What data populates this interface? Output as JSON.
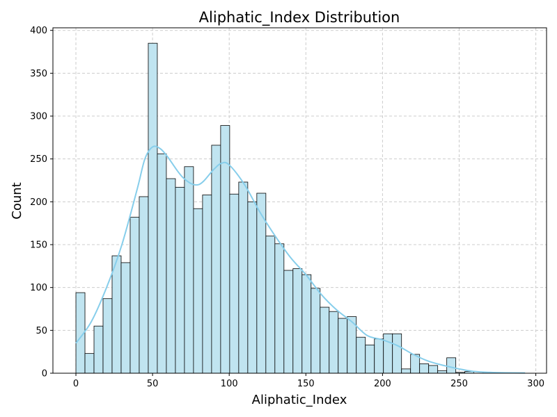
{
  "chart_data": {
    "type": "bar",
    "title": "Aliphatic_Index Distribution",
    "xlabel": "Aliphatic_Index",
    "ylabel": "Count",
    "xlim": [
      -15,
      307
    ],
    "ylim": [
      0,
      403
    ],
    "x_ticks": [
      0,
      50,
      100,
      150,
      200,
      250,
      300
    ],
    "y_ticks": [
      0,
      50,
      100,
      150,
      200,
      250,
      300,
      350,
      400
    ],
    "grid": true,
    "legend": "none",
    "bin_start": 0,
    "bin_width": 5.9,
    "counts": [
      94,
      23,
      55,
      87,
      137,
      129,
      182,
      206,
      385,
      256,
      227,
      217,
      241,
      192,
      208,
      266,
      289,
      209,
      223,
      200,
      210,
      160,
      151,
      120,
      122,
      115,
      99,
      77,
      72,
      64,
      66,
      42,
      33,
      40,
      46,
      46,
      5,
      22,
      11,
      9,
      3,
      18,
      1,
      2,
      0,
      1,
      0,
      0,
      0,
      0
    ],
    "kde": {
      "x": [
        0,
        10,
        20,
        30,
        40,
        45,
        50,
        55,
        60,
        70,
        80,
        90,
        95,
        100,
        110,
        120,
        130,
        140,
        150,
        160,
        170,
        180,
        190,
        200,
        210,
        220,
        230,
        240,
        250,
        260,
        270,
        280,
        293
      ],
      "y": [
        35,
        60,
        100,
        150,
        215,
        250,
        264,
        262,
        252,
        228,
        220,
        238,
        245,
        243,
        220,
        188,
        160,
        135,
        115,
        92,
        74,
        60,
        44,
        39,
        32,
        22,
        14,
        9,
        5,
        2,
        1,
        0.5,
        0.3
      ]
    },
    "colors": {
      "bar_fill": "#c0e4f0",
      "bar_edge": "#000000",
      "kde_line": "#87ceeb",
      "grid": "#cccccc"
    }
  }
}
